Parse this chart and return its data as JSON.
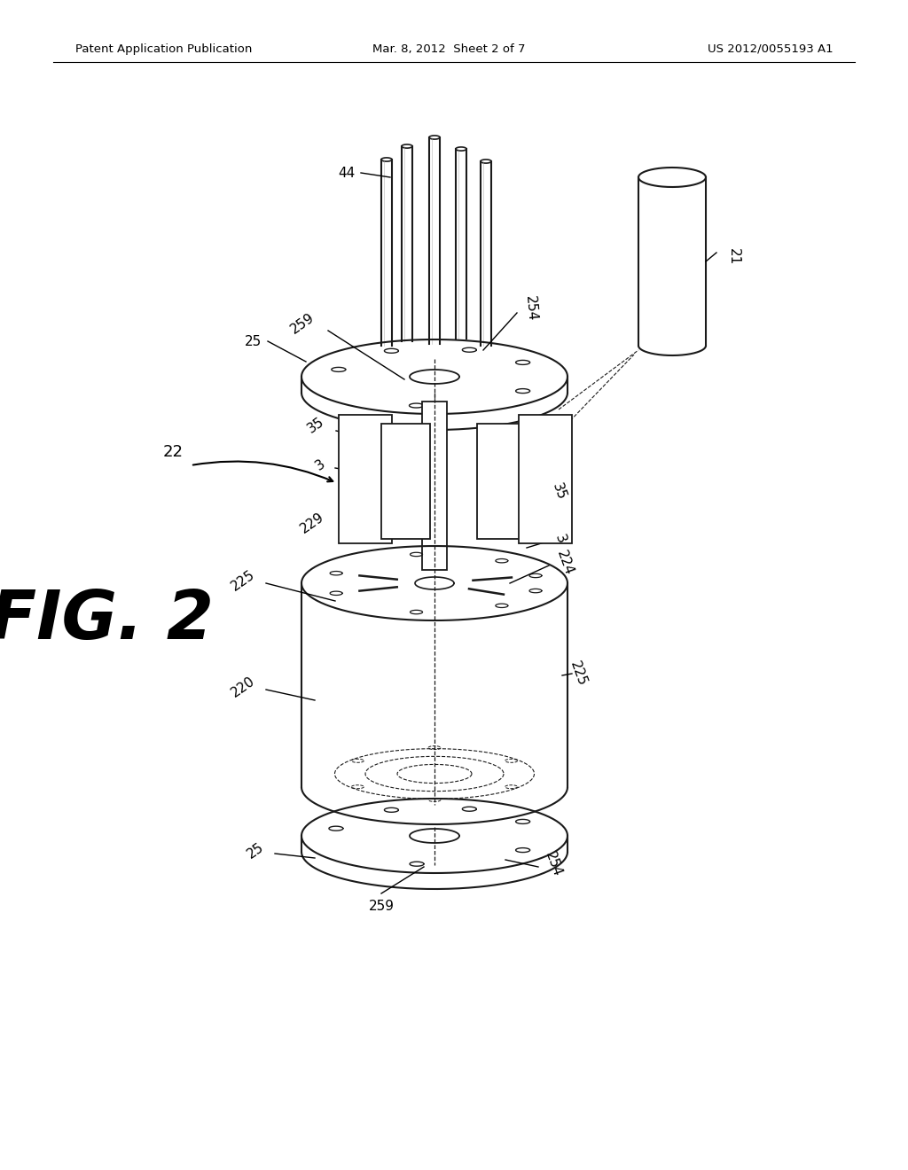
{
  "header_left": "Patent Application Publication",
  "header_center": "Mar. 8, 2012  Sheet 2 of 7",
  "header_right": "US 2012/0055193 A1",
  "fig_label": "FIG. 2",
  "bg_color": "#ffffff",
  "lc": "#1a1a1a",
  "gc": "#999999"
}
